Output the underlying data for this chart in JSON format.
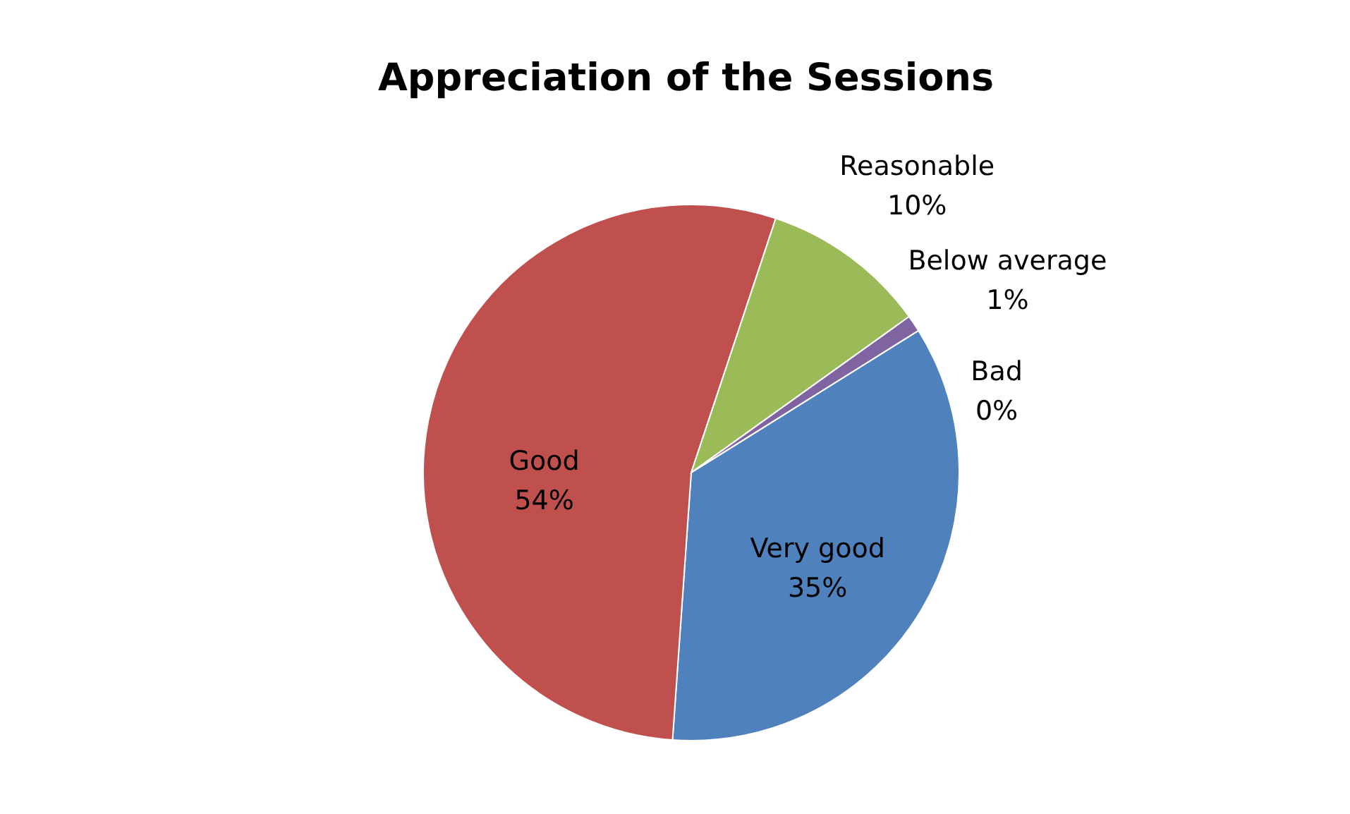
{
  "chart_data": {
    "type": "pie",
    "title": "Appreciation of the Sessions",
    "categories": [
      "Very good",
      "Good",
      "Reasonable",
      "Below average",
      "Bad"
    ],
    "values": [
      35,
      54,
      10,
      1,
      0
    ],
    "value_labels": [
      "35%",
      "54%",
      "10%",
      "1%",
      "0%"
    ],
    "colors": [
      "#4f81bd",
      "#c0504d",
      "#9bbb59",
      "#8064a2",
      "#4bacc6"
    ]
  }
}
